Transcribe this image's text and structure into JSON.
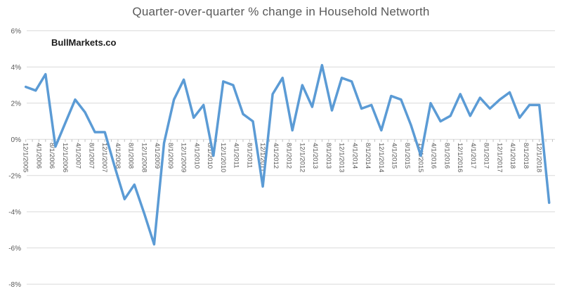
{
  "chart": {
    "title": "Quarter-over-quarter % change in Household Networth",
    "watermark": "BullMarkets.co",
    "colors": {
      "line": "#5B9BD5",
      "gridline": "#D9D9D9",
      "tick_mark": "#BFBFBF",
      "axis_text": "#595959",
      "title_text": "#595959",
      "background": "#FFFFFF"
    }
  },
  "chart_data": {
    "type": "line",
    "title": "Quarter-over-quarter % change in Household Networth",
    "annotation": "BullMarkets.co",
    "legend": "none",
    "grid": "horizontal",
    "frequency": "quarterly",
    "unit": "%",
    "x_dates": [
      "12/1/2005",
      "3/1/2006",
      "6/1/2006",
      "9/1/2006",
      "12/1/2006",
      "3/1/2007",
      "6/1/2007",
      "9/1/2007",
      "12/1/2007",
      "3/1/2008",
      "6/1/2008",
      "9/1/2008",
      "12/1/2008",
      "3/1/2009",
      "6/1/2009",
      "9/1/2009",
      "12/1/2009",
      "3/1/2010",
      "6/1/2010",
      "9/1/2010",
      "12/1/2010",
      "3/1/2011",
      "6/1/2011",
      "9/1/2011",
      "12/1/2011",
      "3/1/2012",
      "6/1/2012",
      "9/1/2012",
      "12/1/2012",
      "3/1/2013",
      "6/1/2013",
      "9/1/2013",
      "12/1/2013",
      "3/1/2014",
      "6/1/2014",
      "9/1/2014",
      "12/1/2014",
      "3/1/2015",
      "6/1/2015",
      "9/1/2015",
      "12/1/2015",
      "3/1/2016",
      "6/1/2016",
      "9/1/2016",
      "12/1/2016",
      "3/1/2017",
      "6/1/2017",
      "9/1/2017",
      "12/1/2017",
      "3/1/2018",
      "6/1/2018",
      "9/1/2018",
      "12/1/2018",
      "3/1/2019"
    ],
    "values": [
      2.9,
      2.7,
      3.6,
      -0.4,
      0.9,
      2.2,
      1.5,
      0.4,
      0.4,
      -1.5,
      -3.3,
      -2.5,
      -4.1,
      -5.8,
      -0.2,
      2.2,
      3.3,
      1.2,
      1.9,
      -0.9,
      3.2,
      3.0,
      1.4,
      1.0,
      -2.6,
      2.5,
      3.4,
      0.5,
      3.0,
      1.8,
      4.1,
      1.6,
      3.4,
      3.2,
      1.7,
      1.9,
      0.5,
      2.4,
      2.2,
      0.8,
      -0.9,
      2.0,
      1.0,
      1.3,
      2.5,
      1.3,
      2.3,
      1.7,
      2.2,
      2.6,
      1.2,
      1.9,
      1.9,
      -3.5
    ],
    "y_axis": {
      "tick_labels": [
        "6%",
        "4%",
        "2%",
        "0%",
        "-2%",
        "-4%",
        "-6%",
        "-8%"
      ],
      "min": -8,
      "max": 6
    },
    "x_axis": {
      "tick_labels": [
        "12/1/2005",
        "4/1/2006",
        "8/1/2006",
        "12/1/2006",
        "4/1/2007",
        "8/1/2007",
        "12/1/2007",
        "4/1/2008",
        "8/1/2008",
        "12/1/2008",
        "4/1/2009",
        "8/1/2009",
        "12/1/2009",
        "4/1/2010",
        "8/1/2010",
        "12/1/2010",
        "4/1/2011",
        "8/1/2011",
        "12/1/2011",
        "4/1/2012",
        "8/1/2012",
        "12/1/2012",
        "4/1/2013",
        "8/1/2013",
        "12/1/2013",
        "4/1/2014",
        "8/1/2014",
        "12/1/2014",
        "4/1/2015",
        "8/1/2015",
        "12/1/2015",
        "4/1/2016",
        "8/1/2016",
        "12/1/2016",
        "4/1/2017",
        "8/1/2017",
        "12/1/2017",
        "4/1/2018",
        "8/1/2018",
        "12/1/2018"
      ],
      "label_rotation_deg": 90,
      "tick_interval": "4 months"
    }
  }
}
